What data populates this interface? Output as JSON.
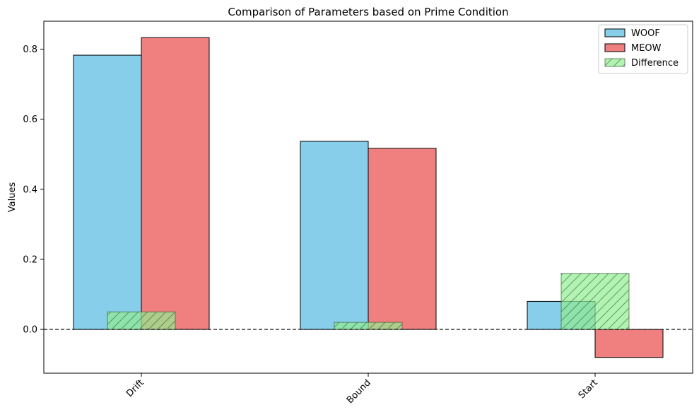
{
  "chart_data": {
    "type": "bar",
    "title": "Comparison of Parameters based on Prime Condition",
    "xlabel": "",
    "ylabel": "Values",
    "categories": [
      "Drift",
      "Bound",
      "Start"
    ],
    "series": [
      {
        "name": "WOOF",
        "values": [
          0.783,
          0.537,
          0.08
        ],
        "color": "#87ceeb",
        "hatch": false
      },
      {
        "name": "MEOW",
        "values": [
          0.833,
          0.517,
          -0.08
        ],
        "color": "#f08080",
        "hatch": false
      },
      {
        "name": "Difference",
        "values": [
          0.05,
          0.02,
          0.16
        ],
        "color": "#90ee90",
        "hatch": true
      }
    ],
    "ylim": [
      -0.125,
      0.88
    ],
    "yticks": [
      "-0.2",
      "0.0",
      "0.2",
      "0.4",
      "0.6",
      "0.8"
    ],
    "zero_line": true,
    "grid": false,
    "legend_position": "top-right"
  }
}
